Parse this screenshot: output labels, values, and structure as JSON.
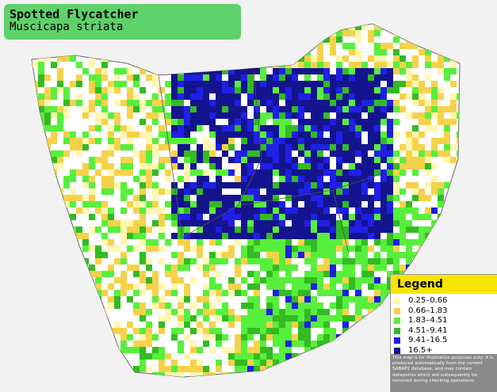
{
  "header": {
    "title": "Spotted Flycatcher",
    "subtitle": "Muscicapa striata"
  },
  "legend": {
    "title": "Legend",
    "items": [
      {
        "label": "0.25–0.66",
        "color": "#fff7b0"
      },
      {
        "label": "0.66–1.83",
        "color": "#f5d24a"
      },
      {
        "label": "1.83–4.51",
        "color": "#57ef3c"
      },
      {
        "label": "4.51–9.41",
        "color": "#33bb22"
      },
      {
        "label": "9.41–16.5",
        "color": "#1f1fe8"
      },
      {
        "label": "16.5+",
        "color": "#14148f"
      }
    ]
  },
  "disclaimer": "This map is for illustrative purposes only; it is produced automatically from the current SABAP2 database, and may contain datapoints which will subsequently be removed during checking operations."
}
